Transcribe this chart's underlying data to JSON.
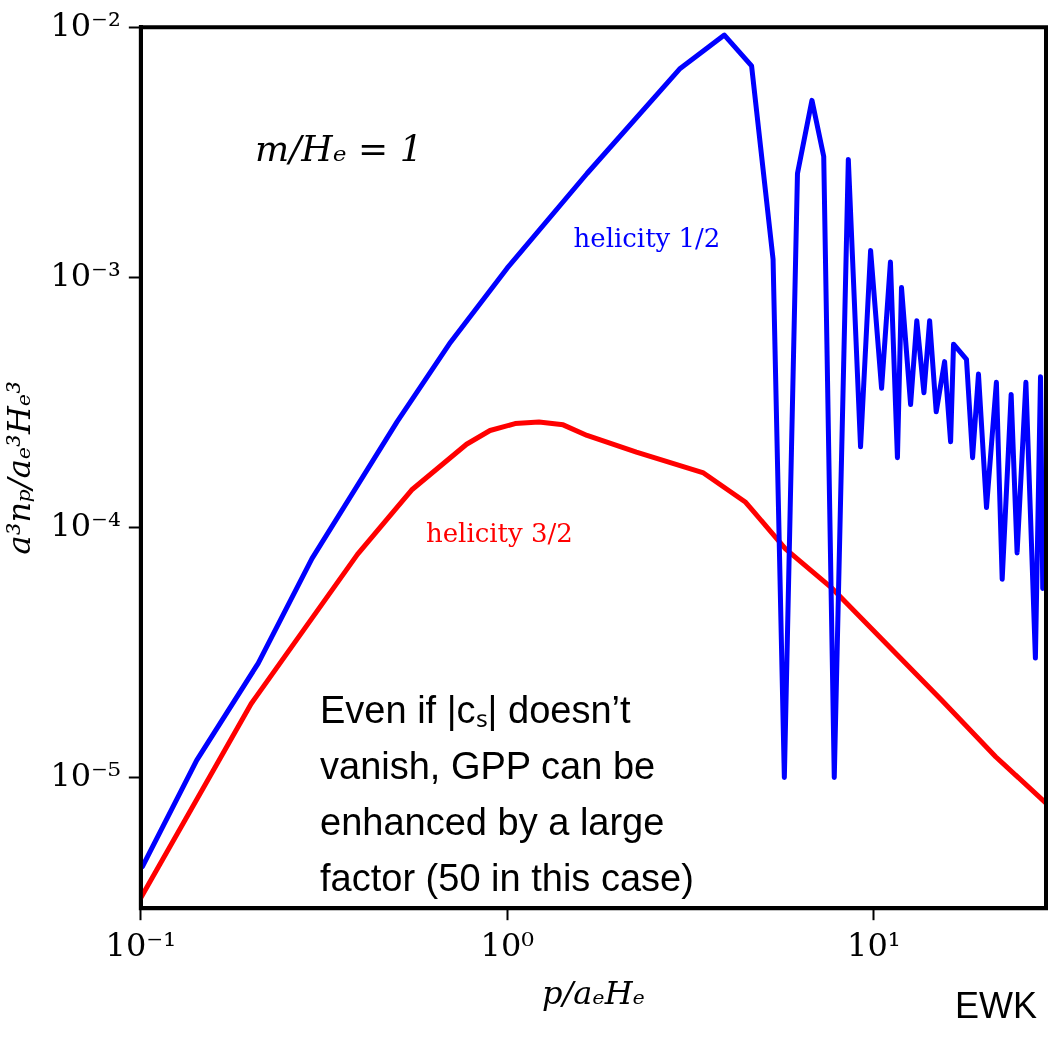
{
  "chart_data": {
    "type": "line",
    "xlabel": "p/aₑHₑ",
    "ylabel": "a³nₚ/aₑ³Hₑ³",
    "log": "xy",
    "grid": false,
    "legend": false,
    "marker": "none",
    "line_style": "solid",
    "xlim": [
      0.1,
      29.5
    ],
    "ylim": [
      3e-06,
      0.01
    ],
    "xticks": [
      {
        "value": 0.1,
        "label": "10⁻¹"
      },
      {
        "value": 1,
        "label": "10⁰"
      },
      {
        "value": 10,
        "label": "10¹"
      }
    ],
    "yticks": [
      {
        "value": 1e-05,
        "label": "10⁻⁵"
      },
      {
        "value": 0.0001,
        "label": "10⁻⁴"
      },
      {
        "value": 0.001,
        "label": "10⁻³"
      },
      {
        "value": 0.01,
        "label": "10⁻²"
      }
    ],
    "series": [
      {
        "name": "helicity 1/2",
        "color": "#0000ff",
        "x": [
          0.101,
          0.142,
          0.209,
          0.293,
          0.5,
          0.7,
          1.0,
          1.65,
          2.95,
          3.91,
          4.64,
          5.31,
          5.7,
          6.19,
          6.78,
          7.3,
          7.8,
          8.52,
          9.2,
          9.8,
          10.5,
          11.1,
          11.6,
          11.9,
          12.6,
          13.1,
          13.7,
          14.2,
          14.8,
          15.6,
          16.2,
          16.5,
          17.9,
          18.6,
          19.3,
          20.3,
          21.6,
          22.4,
          23.7,
          24.6,
          26.0,
          27.6,
          28.5,
          28.9
        ],
        "values": [
          4.4e-06,
          1.17e-05,
          2.86e-05,
          7.5e-05,
          0.000264,
          0.00055,
          0.00109,
          0.0026,
          0.0068,
          0.0093,
          0.007,
          0.00118,
          1e-05,
          0.0026,
          0.0051,
          0.00304,
          1e-05,
          0.00296,
          0.00021,
          0.00128,
          0.00036,
          0.00115,
          0.00019,
          0.00091,
          0.00031,
          0.00067,
          0.000345,
          0.00067,
          0.00029,
          0.00046,
          0.00022,
          0.00054,
          0.00047,
          0.00019,
          0.00041,
          0.00012,
          0.00038,
          6.2e-05,
          0.00034,
          7.9e-05,
          0.00038,
          3e-05,
          0.0004,
          5.7e-05
        ]
      },
      {
        "name": "helicity 3/2",
        "color": "#ff0000",
        "x": [
          0.1,
          0.2,
          0.282,
          0.39,
          0.548,
          0.774,
          0.897,
          1.05,
          1.22,
          1.42,
          1.65,
          2.25,
          3.43,
          4.47,
          5.74,
          7.7,
          15.3,
          21.5,
          29.5
        ],
        "values": [
          3.3e-06,
          1.97e-05,
          4e-05,
          7.8e-05,
          0.000141,
          0.000215,
          0.000244,
          0.00026,
          0.000264,
          0.000257,
          0.000233,
          0.0002,
          0.000165,
          0.000126,
          8.2e-05,
          5.7e-05,
          2.04e-05,
          1.21e-05,
          7.9e-06
        ]
      }
    ],
    "annotations": [
      "m/Hₑ = 1",
      "Even if |cₛ| doesn’t vanish, GPP can be enhanced by a large factor (50 in this case)",
      "EWK"
    ]
  }
}
